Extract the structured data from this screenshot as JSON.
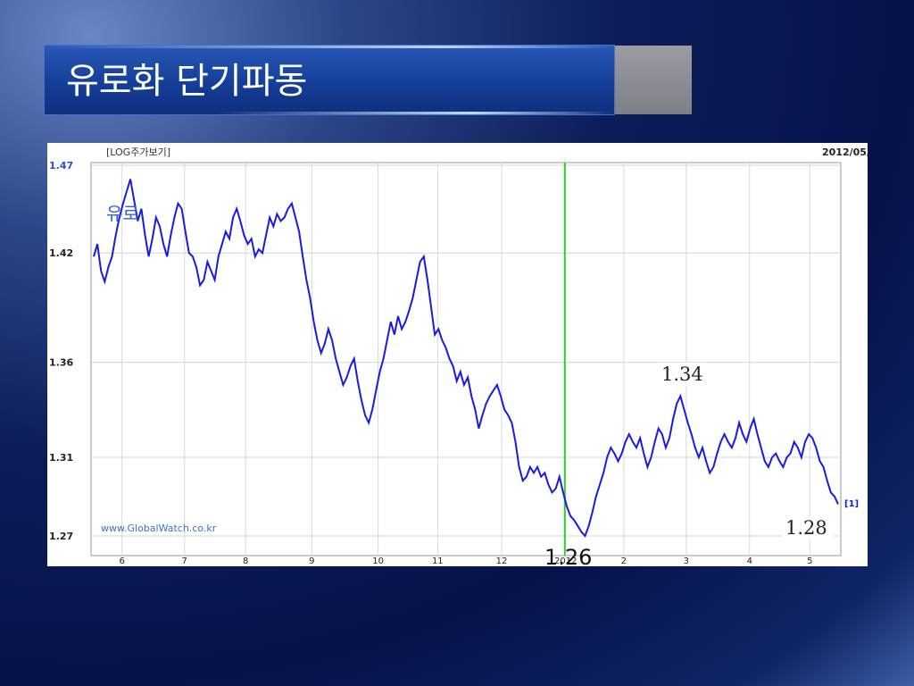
{
  "slide": {
    "title": "유로화 단기파동"
  },
  "chart_data": {
    "type": "line",
    "header_left": "[LOG주가보기]",
    "header_right": "2012/05/",
    "watermark": "www.GlobalWatch.co.kr",
    "series_label": "유로",
    "series_tag": "[1]",
    "y_ticks": [
      "1.47",
      "1.42",
      "1.36",
      "1.31",
      "1.27"
    ],
    "y_tick_values": [
      1.47,
      1.42,
      1.36,
      1.31,
      1.27
    ],
    "x_ticks": [
      "6",
      "7",
      "8",
      "9",
      "10",
      "11",
      "12",
      "2012",
      "2",
      "3",
      "4",
      "5"
    ],
    "ylim": [
      1.27,
      1.47
    ],
    "y_scale": "log",
    "grid": true,
    "line_color": "#1a1ae6",
    "marker_line_color": "#33cc33",
    "marker_x": "2012",
    "series": [
      {
        "values": [
          1.418,
          1.425,
          1.41,
          1.404,
          1.412,
          1.418,
          1.43,
          1.44,
          1.448,
          1.455,
          1.462,
          1.45,
          1.438,
          1.445,
          1.43,
          1.418,
          1.428,
          1.44,
          1.435,
          1.425,
          1.418,
          1.43,
          1.44,
          1.448,
          1.445,
          1.432,
          1.42,
          1.418,
          1.412,
          1.402,
          1.405,
          1.415,
          1.41,
          1.405,
          1.418,
          1.425,
          1.432,
          1.428,
          1.44,
          1.445,
          1.438,
          1.43,
          1.425,
          1.428,
          1.418,
          1.422,
          1.42,
          1.43,
          1.44,
          1.435,
          1.442,
          1.438,
          1.44,
          1.445,
          1.448,
          1.44,
          1.432,
          1.418,
          1.405,
          1.395,
          1.382,
          1.372,
          1.365,
          1.37,
          1.378,
          1.372,
          1.362,
          1.355,
          1.348,
          1.352,
          1.358,
          1.362,
          1.35,
          1.34,
          1.332,
          1.328,
          1.335,
          1.345,
          1.355,
          1.362,
          1.372,
          1.382,
          1.375,
          1.385,
          1.378,
          1.382,
          1.388,
          1.395,
          1.405,
          1.415,
          1.418,
          1.405,
          1.39,
          1.375,
          1.378,
          1.372,
          1.368,
          1.362,
          1.358,
          1.35,
          1.355,
          1.348,
          1.352,
          1.342,
          1.335,
          1.325,
          1.332,
          1.338,
          1.342,
          1.345,
          1.348,
          1.342,
          1.335,
          1.332,
          1.328,
          1.318,
          1.305,
          1.298,
          1.3,
          1.305,
          1.302,
          1.305,
          1.3,
          1.302,
          1.296,
          1.292,
          1.294,
          1.3,
          1.292,
          1.285,
          1.28,
          1.278,
          1.275,
          1.272,
          1.27,
          1.275,
          1.282,
          1.29,
          1.296,
          1.302,
          1.31,
          1.315,
          1.312,
          1.308,
          1.312,
          1.318,
          1.322,
          1.318,
          1.315,
          1.32,
          1.312,
          1.305,
          1.31,
          1.318,
          1.325,
          1.322,
          1.315,
          1.32,
          1.33,
          1.338,
          1.342,
          1.335,
          1.328,
          1.322,
          1.315,
          1.31,
          1.315,
          1.308,
          1.302,
          1.305,
          1.312,
          1.318,
          1.322,
          1.318,
          1.315,
          1.32,
          1.328,
          1.322,
          1.318,
          1.325,
          1.33,
          1.322,
          1.315,
          1.308,
          1.305,
          1.31,
          1.312,
          1.308,
          1.305,
          1.31,
          1.312,
          1.318,
          1.315,
          1.31,
          1.318,
          1.322,
          1.32,
          1.315,
          1.308,
          1.305,
          1.298,
          1.292,
          1.29,
          1.286
        ]
      }
    ],
    "annotations": [
      {
        "text": "1.34"
      },
      {
        "text": "1.28"
      },
      {
        "text": "1.26"
      }
    ]
  }
}
